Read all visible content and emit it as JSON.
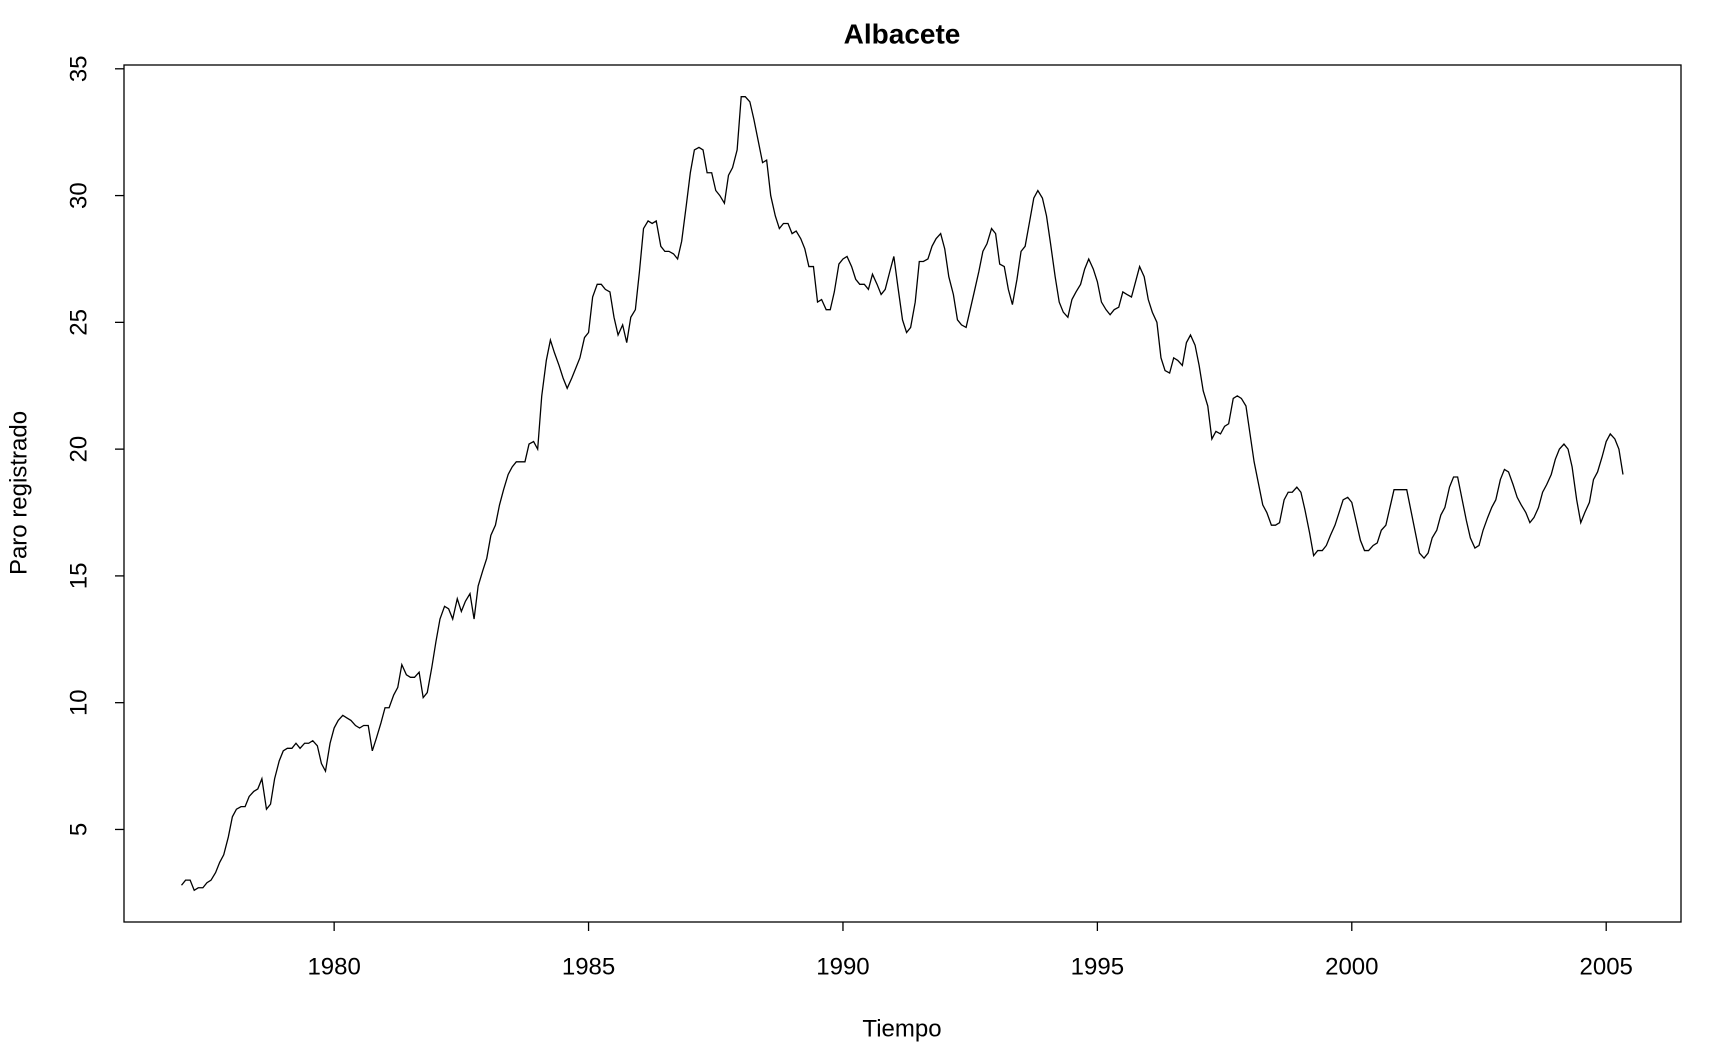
{
  "chart_data": {
    "type": "line",
    "title": "Albacete",
    "x_label": "Tiempo",
    "y_label": "Paro registrado",
    "xlim": [
      1975.87,
      2006.47
    ],
    "ylim": [
      1.35,
      35.15
    ],
    "xticks": [
      1980,
      1985,
      1990,
      1995,
      2000,
      2005
    ],
    "yticks": [
      5,
      10,
      15,
      20,
      25,
      30,
      35
    ],
    "x": [
      1977.0,
      1977.08,
      1977.17,
      1977.25,
      1977.33,
      1977.42,
      1977.5,
      1977.58,
      1977.67,
      1977.75,
      1977.83,
      1977.92,
      1978.0,
      1978.08,
      1978.17,
      1978.25,
      1978.33,
      1978.42,
      1978.5,
      1978.58,
      1978.67,
      1978.75,
      1978.83,
      1978.92,
      1979.0,
      1979.08,
      1979.17,
      1979.25,
      1979.33,
      1979.42,
      1979.5,
      1979.58,
      1979.67,
      1979.75,
      1979.83,
      1979.92,
      1980.0,
      1980.08,
      1980.17,
      1980.25,
      1980.33,
      1980.42,
      1980.5,
      1980.58,
      1980.67,
      1980.75,
      1980.83,
      1980.92,
      1981.0,
      1981.08,
      1981.17,
      1981.25,
      1981.33,
      1981.42,
      1981.5,
      1981.58,
      1981.67,
      1981.75,
      1981.83,
      1981.92,
      1982.0,
      1982.08,
      1982.17,
      1982.25,
      1982.33,
      1982.42,
      1982.5,
      1982.58,
      1982.67,
      1982.75,
      1982.83,
      1982.92,
      1983.0,
      1983.08,
      1983.17,
      1983.25,
      1983.33,
      1983.42,
      1983.5,
      1983.58,
      1983.67,
      1983.75,
      1983.83,
      1983.92,
      1984.0,
      1984.08,
      1984.17,
      1984.25,
      1984.33,
      1984.42,
      1984.5,
      1984.58,
      1984.67,
      1984.75,
      1984.83,
      1984.92,
      1985.0,
      1985.08,
      1985.17,
      1985.25,
      1985.33,
      1985.42,
      1985.5,
      1985.58,
      1985.67,
      1985.75,
      1985.83,
      1985.92,
      1986.0,
      1986.08,
      1986.17,
      1986.25,
      1986.33,
      1986.42,
      1986.5,
      1986.58,
      1986.67,
      1986.75,
      1986.83,
      1986.92,
      1987.0,
      1987.08,
      1987.17,
      1987.25,
      1987.33,
      1987.42,
      1987.5,
      1987.58,
      1987.67,
      1987.75,
      1987.83,
      1987.92,
      1988.0,
      1988.08,
      1988.17,
      1988.25,
      1988.33,
      1988.42,
      1988.5,
      1988.58,
      1988.67,
      1988.75,
      1988.83,
      1988.92,
      1989.0,
      1989.08,
      1989.17,
      1989.25,
      1989.33,
      1989.42,
      1989.5,
      1989.58,
      1989.67,
      1989.75,
      1989.83,
      1989.92,
      1990.0,
      1990.08,
      1990.17,
      1990.25,
      1990.33,
      1990.42,
      1990.5,
      1990.58,
      1990.67,
      1990.75,
      1990.83,
      1990.92,
      1991.0,
      1991.08,
      1991.17,
      1991.25,
      1991.33,
      1991.42,
      1991.5,
      1991.58,
      1991.67,
      1991.75,
      1991.83,
      1991.92,
      1992.0,
      1992.08,
      1992.17,
      1992.25,
      1992.33,
      1992.42,
      1992.5,
      1992.58,
      1992.67,
      1992.75,
      1992.83,
      1992.92,
      1993.0,
      1993.08,
      1993.17,
      1993.25,
      1993.33,
      1993.42,
      1993.5,
      1993.58,
      1993.67,
      1993.75,
      1993.83,
      1993.92,
      1994.0,
      1994.08,
      1994.17,
      1994.25,
      1994.33,
      1994.42,
      1994.5,
      1994.58,
      1994.67,
      1994.75,
      1994.83,
      1994.92,
      1995.0,
      1995.08,
      1995.17,
      1995.25,
      1995.33,
      1995.42,
      1995.5,
      1995.58,
      1995.67,
      1995.75,
      1995.83,
      1995.92,
      1996.0,
      1996.08,
      1996.17,
      1996.25,
      1996.33,
      1996.42,
      1996.5,
      1996.58,
      1996.67,
      1996.75,
      1996.83,
      1996.92,
      1997.0,
      1997.08,
      1997.17,
      1997.25,
      1997.33,
      1997.42,
      1997.5,
      1997.58,
      1997.67,
      1997.75,
      1997.83,
      1997.92,
      1998.0,
      1998.08,
      1998.17,
      1998.25,
      1998.33,
      1998.42,
      1998.5,
      1998.58,
      1998.67,
      1998.75,
      1998.83,
      1998.92,
      1999.0,
      1999.08,
      1999.17,
      1999.25,
      1999.33,
      1999.42,
      1999.5,
      1999.58,
      1999.67,
      1999.75,
      1999.83,
      1999.92,
      2000.0,
      2000.08,
      2000.17,
      2000.25,
      2000.33,
      2000.42,
      2000.5,
      2000.58,
      2000.67,
      2000.75,
      2000.83,
      2000.92,
      2001.0,
      2001.08,
      2001.17,
      2001.25,
      2001.33,
      2001.42,
      2001.5,
      2001.58,
      2001.67,
      2001.75,
      2001.83,
      2001.92,
      2002.0,
      2002.08,
      2002.17,
      2002.25,
      2002.33,
      2002.42,
      2002.5,
      2002.58,
      2002.67,
      2002.75,
      2002.83,
      2002.92,
      2003.0,
      2003.08,
      2003.17,
      2003.25,
      2003.33,
      2003.42,
      2003.5,
      2003.58,
      2003.67,
      2003.75,
      2003.83,
      2003.92,
      2004.0,
      2004.08,
      2004.17,
      2004.25,
      2004.33,
      2004.42,
      2004.5,
      2004.58,
      2004.67,
      2004.75,
      2004.83,
      2004.92,
      2005.0,
      2005.08,
      2005.17,
      2005.25,
      2005.33
    ],
    "series": [
      {
        "color": "#000000",
        "values": [
          2.8,
          3.0,
          3.0,
          2.6,
          2.7,
          2.7,
          2.9,
          3.0,
          3.3,
          3.7,
          4.0,
          4.7,
          5.5,
          5.8,
          5.9,
          5.9,
          6.3,
          6.5,
          6.6,
          7.0,
          5.8,
          6.0,
          7.0,
          7.7,
          8.1,
          8.2,
          8.2,
          8.4,
          8.2,
          8.4,
          8.4,
          8.5,
          8.3,
          7.6,
          7.3,
          8.4,
          9.0,
          9.3,
          9.5,
          9.4,
          9.3,
          9.1,
          9.0,
          9.1,
          9.1,
          8.1,
          8.6,
          9.2,
          9.8,
          9.8,
          10.3,
          10.6,
          11.5,
          11.1,
          11.0,
          11.0,
          11.2,
          10.2,
          10.4,
          11.4,
          12.4,
          13.3,
          13.8,
          13.7,
          13.3,
          14.1,
          13.6,
          14.0,
          14.3,
          13.3,
          14.6,
          15.2,
          15.7,
          16.6,
          17.0,
          17.8,
          18.4,
          19.0,
          19.3,
          19.5,
          19.5,
          19.5,
          20.2,
          20.3,
          20.0,
          22.1,
          23.5,
          24.3,
          23.8,
          23.3,
          22.8,
          22.4,
          22.8,
          23.2,
          23.6,
          24.4,
          24.6,
          26.0,
          26.5,
          26.5,
          26.3,
          26.2,
          25.2,
          24.5,
          24.9,
          24.2,
          25.2,
          25.5,
          27.0,
          28.7,
          29.0,
          28.9,
          29.0,
          28.0,
          27.8,
          27.8,
          27.7,
          27.5,
          28.2,
          29.6,
          30.9,
          31.8,
          31.9,
          31.8,
          30.9,
          30.9,
          30.2,
          30.0,
          29.7,
          30.8,
          31.1,
          31.8,
          33.9,
          33.9,
          33.7,
          33.0,
          32.2,
          31.3,
          31.4,
          30.0,
          29.2,
          28.7,
          28.9,
          28.9,
          28.5,
          28.6,
          28.3,
          27.9,
          27.2,
          27.2,
          25.8,
          25.9,
          25.5,
          25.5,
          26.2,
          27.3,
          27.5,
          27.6,
          27.2,
          26.7,
          26.5,
          26.5,
          26.3,
          26.9,
          26.5,
          26.1,
          26.3,
          27.0,
          27.6,
          26.4,
          25.1,
          24.6,
          24.8,
          25.8,
          27.4,
          27.4,
          27.5,
          28.0,
          28.3,
          28.5,
          27.9,
          26.8,
          26.1,
          25.1,
          24.9,
          24.8,
          25.5,
          26.2,
          27.0,
          27.8,
          28.1,
          28.7,
          28.5,
          27.3,
          27.2,
          26.3,
          25.7,
          26.7,
          27.8,
          28.0,
          29.0,
          29.9,
          30.2,
          29.9,
          29.2,
          28.1,
          26.8,
          25.8,
          25.4,
          25.2,
          25.9,
          26.2,
          26.5,
          27.1,
          27.5,
          27.1,
          26.6,
          25.8,
          25.5,
          25.3,
          25.5,
          25.6,
          26.2,
          26.1,
          26.0,
          26.6,
          27.2,
          26.8,
          25.9,
          25.4,
          25.0,
          23.6,
          23.1,
          23.0,
          23.6,
          23.5,
          23.3,
          24.2,
          24.5,
          24.1,
          23.3,
          22.3,
          21.7,
          20.4,
          20.7,
          20.6,
          20.9,
          21.0,
          22.0,
          22.1,
          22.0,
          21.7,
          20.6,
          19.5,
          18.6,
          17.8,
          17.5,
          17.0,
          17.0,
          17.1,
          18.0,
          18.3,
          18.3,
          18.5,
          18.3,
          17.6,
          16.7,
          15.8,
          16.0,
          16.0,
          16.2,
          16.6,
          17.0,
          17.5,
          18.0,
          18.1,
          17.9,
          17.2,
          16.4,
          16.0,
          16.0,
          16.2,
          16.3,
          16.8,
          17.0,
          17.7,
          18.4,
          18.4,
          18.4,
          18.4,
          17.5,
          16.7,
          15.9,
          15.7,
          15.9,
          16.5,
          16.8,
          17.4,
          17.7,
          18.5,
          18.9,
          18.9,
          18.0,
          17.2,
          16.5,
          16.1,
          16.2,
          16.8,
          17.3,
          17.7,
          18.0,
          18.8,
          19.2,
          19.1,
          18.6,
          18.1,
          17.8,
          17.5,
          17.1,
          17.3,
          17.7,
          18.3,
          18.6,
          19.0,
          19.6,
          20.0,
          20.2,
          20.0,
          19.3,
          18.0,
          17.1,
          17.5,
          17.9,
          18.8,
          19.1,
          19.7,
          20.3,
          20.6,
          20.4,
          20.0,
          19.0
        ]
      }
    ]
  }
}
